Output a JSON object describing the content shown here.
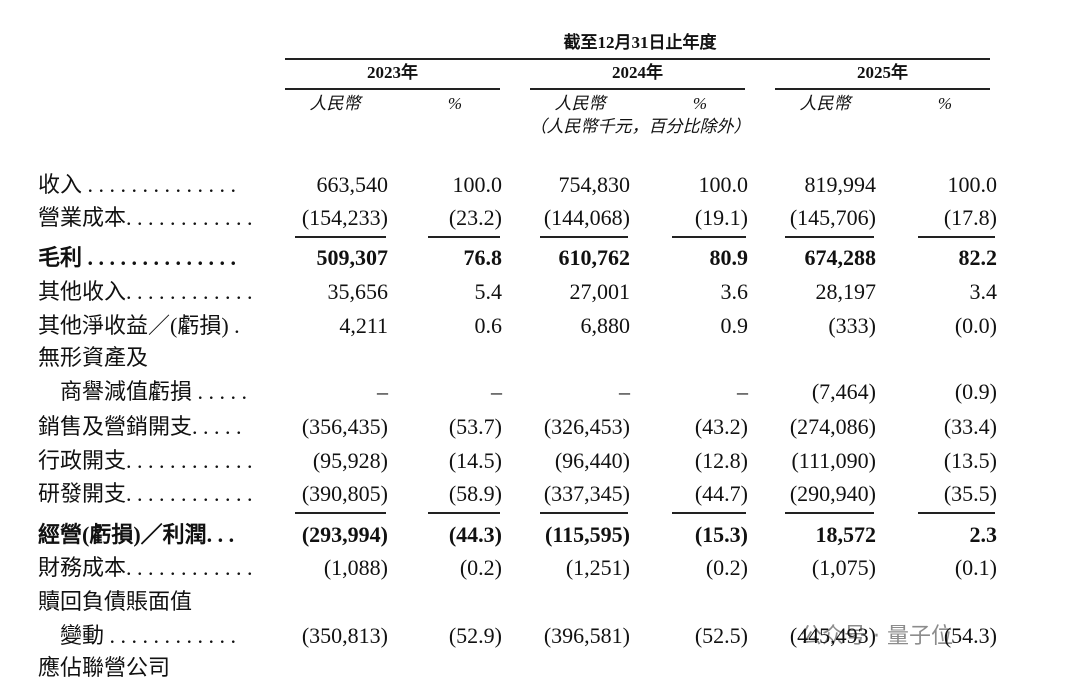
{
  "header": {
    "period": "截至12月31日止年度",
    "years": [
      "2023年",
      "2024年",
      "2025年"
    ],
    "currency": "人民幣",
    "percent": "%",
    "note": "（人民幣千元，百分比除外）"
  },
  "rows": [
    {
      "label": "收入 . . . . . . . . . . . . . .",
      "values": [
        "663,540",
        "100.0",
        "754,830",
        "100.0",
        "819,994",
        "100.0"
      ]
    },
    {
      "label": "營業成本. . . . . . . . . . . .",
      "values": [
        "(154,233)",
        "(23.2)",
        "(144,068)",
        "(19.1)",
        "(145,706)",
        "(17.8)"
      ],
      "rule_below": true
    },
    {
      "label": "毛利 . . . . . . . . . . . . . .",
      "values": [
        "509,307",
        "76.8",
        "610,762",
        "80.9",
        "674,288",
        "82.2"
      ],
      "bold": true
    },
    {
      "label": "其他收入. . . . . . . . . . . .",
      "values": [
        "35,656",
        "5.4",
        "27,001",
        "3.6",
        "28,197",
        "3.4"
      ]
    },
    {
      "label": "其他淨收益／(虧損) .",
      "values": [
        "4,211",
        "0.6",
        "6,880",
        "0.9",
        "(333)",
        "(0.0)"
      ]
    },
    {
      "label": "無形資產及"
    },
    {
      "label": "商譽減值虧損 . . . . .",
      "indent": true,
      "values": [
        "–",
        "–",
        "–",
        "–",
        "(7,464)",
        "(0.9)"
      ]
    },
    {
      "label": "銷售及營銷開支. . . . .",
      "values": [
        "(356,435)",
        "(53.7)",
        "(326,453)",
        "(43.2)",
        "(274,086)",
        "(33.4)"
      ]
    },
    {
      "label": "行政開支. . . . . . . . . . . .",
      "values": [
        "(95,928)",
        "(14.5)",
        "(96,440)",
        "(12.8)",
        "(111,090)",
        "(13.5)"
      ]
    },
    {
      "label": "研發開支. . . . . . . . . . . .",
      "values": [
        "(390,805)",
        "(58.9)",
        "(337,345)",
        "(44.7)",
        "(290,940)",
        "(35.5)"
      ],
      "rule_below": true
    },
    {
      "label": "經營(虧損)／利潤. . .",
      "values": [
        "(293,994)",
        "(44.3)",
        "(115,595)",
        "(15.3)",
        "18,572",
        "2.3"
      ],
      "bold": true
    },
    {
      "label": "財務成本. . . . . . . . . . . .",
      "values": [
        "(1,088)",
        "(0.2)",
        "(1,251)",
        "(0.2)",
        "(1,075)",
        "(0.1)"
      ]
    },
    {
      "label": "贖回負債賬面值"
    },
    {
      "label": "變動 . . . . . . . . . . . .",
      "indent": true,
      "values": [
        "(350,813)",
        "(52.9)",
        "(396,581)",
        "(52.5)",
        "(445,493)",
        "(54.3)"
      ]
    },
    {
      "label": "應佔聯營公司"
    }
  ],
  "watermark": "公众号 · 量子位"
}
